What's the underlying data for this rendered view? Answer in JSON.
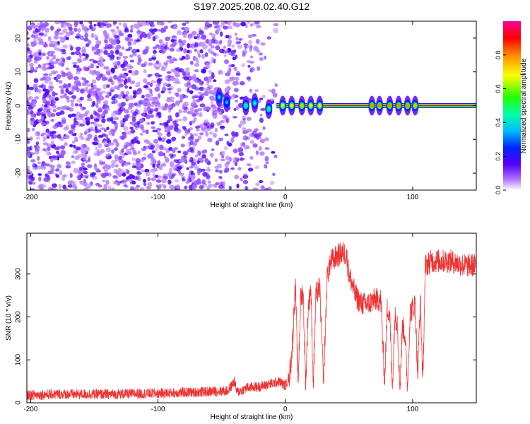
{
  "title": "S197.2025.208.02.40.G12",
  "chart_data": [
    {
      "type": "heatmap",
      "xlabel": "Height of straight line (km)",
      "ylabel": "Frequency (Hz)",
      "xlim": [
        -203,
        150
      ],
      "ylim": [
        -25,
        25
      ],
      "xticks": [
        -200,
        -100,
        0,
        100
      ],
      "yticks": [
        -20,
        -10,
        0,
        10,
        20
      ],
      "colorbar": {
        "label": "Normalized spectral amplitude",
        "range": [
          0.0,
          1.0
        ],
        "ticks": [
          0.0,
          0.2,
          0.4,
          0.6,
          0.8
        ],
        "tick_labels": [
          "0.0",
          "0.2",
          "0.4",
          "0.6",
          "0.8"
        ]
      },
      "noise_extent_km": [
        -203,
        -7
      ],
      "tone_line": {
        "frequency": 0,
        "from_km": -7,
        "to_km": 150,
        "amplitude": 0.9
      },
      "tone_bursts": [
        {
          "x": -52,
          "y": 2.5,
          "amp": 0.4
        },
        {
          "x": -46,
          "y": 1.0,
          "amp": 0.35
        },
        {
          "x": -31,
          "y": 0.0,
          "amp": 0.5
        },
        {
          "x": -24,
          "y": 0.8,
          "amp": 0.45
        },
        {
          "x": -13,
          "y": -1.0,
          "amp": 0.5
        },
        {
          "x": -2,
          "y": 0.0,
          "amp": 0.65
        },
        {
          "x": 5,
          "y": 0.0,
          "amp": 0.7
        },
        {
          "x": 13,
          "y": 0.0,
          "amp": 0.75
        },
        {
          "x": 20,
          "y": 0.0,
          "amp": 0.7
        },
        {
          "x": 27,
          "y": 0.0,
          "amp": 0.7
        },
        {
          "x": 68,
          "y": 0.0,
          "amp": 0.8
        },
        {
          "x": 74,
          "y": 0.0,
          "amp": 0.8
        },
        {
          "x": 82,
          "y": 0.0,
          "amp": 0.8
        },
        {
          "x": 89,
          "y": 0.0,
          "amp": 0.8
        },
        {
          "x": 96,
          "y": 0.0,
          "amp": 0.8
        },
        {
          "x": 102,
          "y": 0.0,
          "amp": 0.75
        }
      ]
    },
    {
      "type": "line",
      "xlabel": "Height of straight line (km)",
      "ylabel": "SNR (10 * v/v)",
      "xlim": [
        -203,
        150
      ],
      "ylim": [
        0,
        395
      ],
      "xticks": [
        -200,
        -100,
        0,
        100
      ],
      "yticks": [
        0,
        100,
        200,
        300
      ],
      "line_color": "#ee3333",
      "series": [
        {
          "x": [
            -203,
            -180,
            -160,
            -140,
            -120,
            -100,
            -80,
            -60,
            -45,
            -40,
            -38,
            -35,
            -30,
            -20,
            -10,
            -5,
            0,
            3,
            5,
            6,
            7,
            8,
            10,
            12,
            14,
            16,
            18,
            20,
            22,
            24,
            27,
            30,
            33,
            36,
            40,
            45,
            48,
            50,
            55,
            60,
            65,
            70,
            75,
            78,
            80,
            82,
            84,
            86,
            88,
            90,
            92,
            94,
            96,
            98,
            100,
            102,
            104,
            106,
            108,
            110,
            115,
            120,
            130,
            140,
            150
          ],
          "y": [
            18,
            20,
            20,
            20,
            21,
            22,
            24,
            26,
            28,
            50,
            25,
            28,
            35,
            38,
            45,
            50,
            40,
            60,
            110,
            160,
            230,
            270,
            40,
            240,
            260,
            40,
            220,
            270,
            40,
            250,
            270,
            45,
            300,
            330,
            340,
            350,
            345,
            300,
            250,
            230,
            230,
            240,
            240,
            45,
            220,
            210,
            30,
            200,
            190,
            30,
            180,
            160,
            30,
            210,
            220,
            230,
            60,
            240,
            50,
            320,
            330,
            330,
            330,
            320,
            320
          ]
        }
      ]
    }
  ]
}
